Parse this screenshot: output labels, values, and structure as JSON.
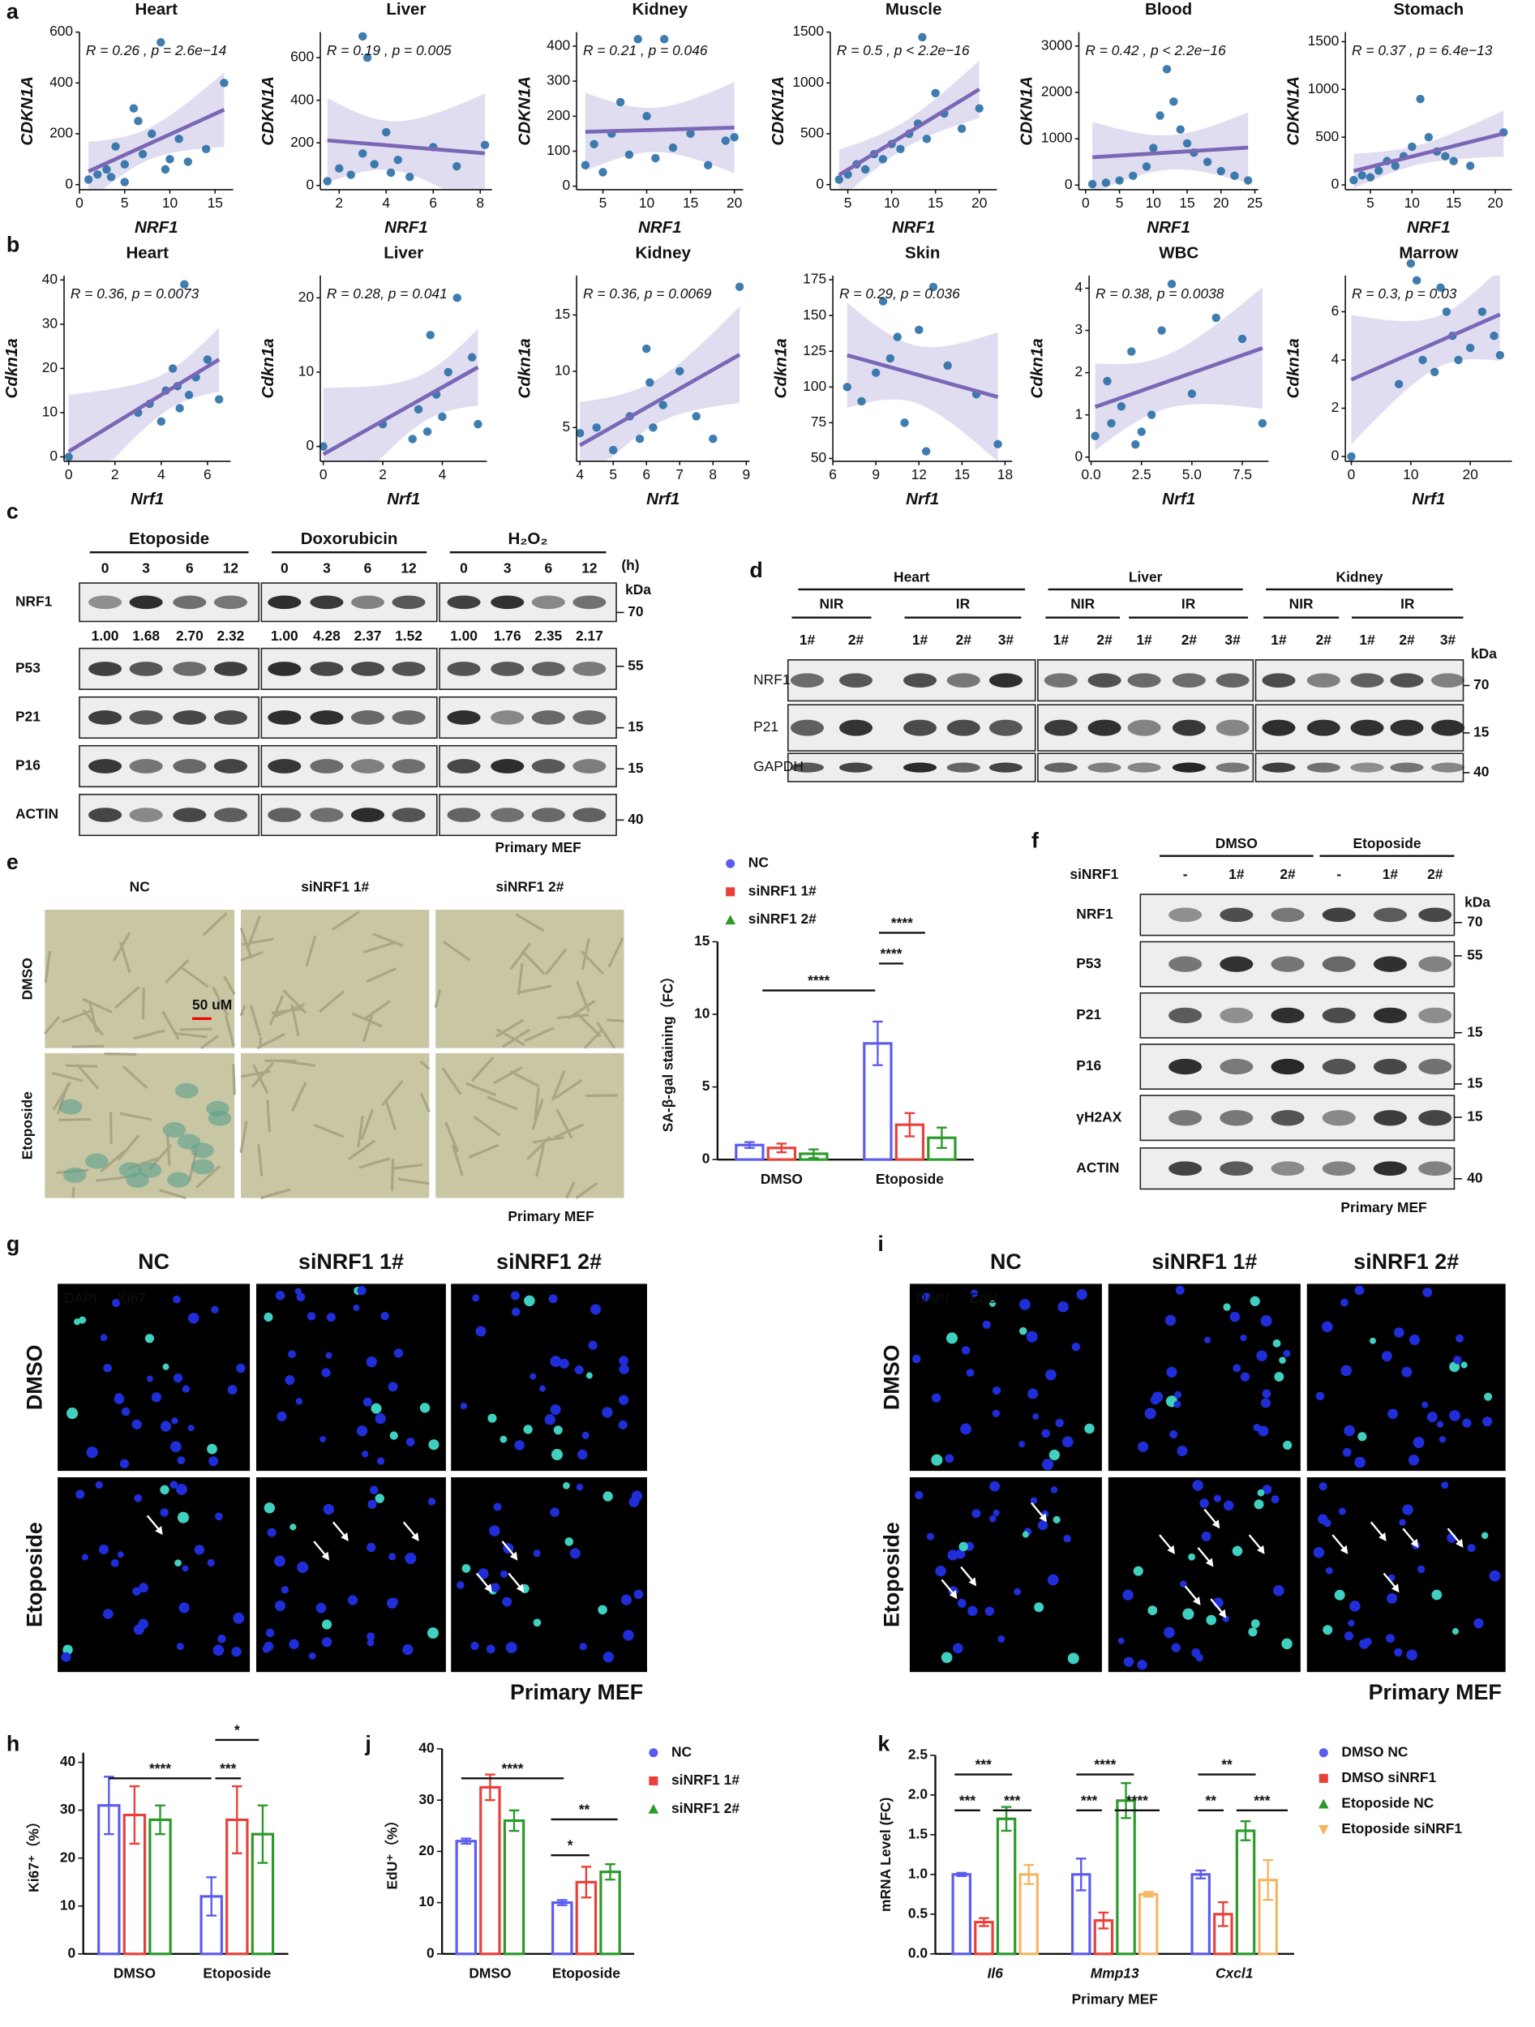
{
  "panel_labels": [
    "a",
    "b",
    "c",
    "d",
    "e",
    "f",
    "g",
    "h",
    "i",
    "j",
    "k"
  ],
  "chart_data": [
    {
      "type": "scatter",
      "title": "Heart",
      "annotation": "R = 0.26 , p = 2.6e−14",
      "x_label": "NRF1",
      "y_label": "CDKN1A",
      "color": "#2a6fa6",
      "fit_color": "#7a67b5",
      "band_color": "#d9d5ee",
      "x": [
        1,
        2,
        3,
        4,
        5,
        6,
        7,
        8,
        9,
        10,
        11,
        12,
        14,
        16,
        3.5,
        6.5,
        9.5,
        5
      ],
      "values": [
        20,
        40,
        60,
        150,
        80,
        300,
        120,
        200,
        560,
        100,
        180,
        90,
        140,
        400,
        30,
        250,
        60,
        10
      ],
      "xlim": [
        0,
        17
      ],
      "ylim": [
        -20,
        600
      ],
      "xticks": [
        0,
        5,
        10,
        15
      ],
      "yticks": [
        0,
        200,
        400,
        600
      ]
    },
    {
      "type": "scatter",
      "title": "Liver",
      "annotation": "R = 0.19 , p = 0.005",
      "x_label": "NRF1",
      "y_label": "CDKN1A",
      "color": "#2a6fa6",
      "fit_color": "#7a67b5",
      "band_color": "#d9d5ee",
      "x": [
        1.5,
        2,
        2.5,
        3,
        3,
        3.5,
        4,
        4.2,
        4.5,
        5,
        6,
        7,
        8.2,
        3.2
      ],
      "values": [
        20,
        80,
        50,
        150,
        700,
        100,
        250,
        60,
        120,
        40,
        180,
        90,
        190,
        600
      ],
      "xlim": [
        1.2,
        8.5
      ],
      "ylim": [
        -20,
        720
      ],
      "xticks": [
        2,
        4,
        6,
        8
      ],
      "yticks": [
        0,
        200,
        400,
        600
      ]
    },
    {
      "type": "scatter",
      "title": "Kidney",
      "annotation": "R = 0.21 , p = 0.046",
      "x_label": "NRF1",
      "y_label": "CDKN1A",
      "color": "#2a6fa6",
      "fit_color": "#7a67b5",
      "band_color": "#d9d5ee",
      "x": [
        3,
        4,
        5,
        6,
        8,
        9,
        10,
        11,
        12,
        13,
        15,
        17,
        19,
        20,
        7
      ],
      "values": [
        60,
        120,
        40,
        150,
        90,
        420,
        200,
        80,
        420,
        110,
        150,
        60,
        130,
        140,
        240
      ],
      "xlim": [
        2,
        21
      ],
      "ylim": [
        -10,
        440
      ],
      "xticks": [
        5,
        10,
        15,
        20
      ],
      "yticks": [
        0,
        100,
        200,
        300,
        400
      ]
    },
    {
      "type": "scatter",
      "title": "Muscle",
      "annotation": "R = 0.5 , p < 2.2e−16",
      "x_label": "NRF1",
      "y_label": "CDKN1A",
      "color": "#2a6fa6",
      "fit_color": "#7a67b5",
      "band_color": "#d9d5ee",
      "x": [
        4,
        5,
        6,
        7,
        8,
        9,
        10,
        11,
        12,
        13,
        14,
        15,
        16,
        18,
        20,
        13.5
      ],
      "values": [
        50,
        100,
        200,
        150,
        300,
        250,
        400,
        350,
        500,
        600,
        450,
        900,
        700,
        550,
        750,
        1450
      ],
      "xlim": [
        3,
        22
      ],
      "ylim": [
        -50,
        1500
      ],
      "xticks": [
        5,
        10,
        15,
        20
      ],
      "yticks": [
        0,
        500,
        1000,
        1500
      ]
    },
    {
      "type": "scatter",
      "title": "Blood",
      "annotation": "R = 0.42 , p < 2.2e−16",
      "x_label": "NRF1",
      "y_label": "CDKN1A",
      "color": "#2a6fa6",
      "fit_color": "#7a67b5",
      "band_color": "#d9d5ee",
      "x": [
        1,
        3,
        5,
        7,
        9,
        10,
        11,
        12,
        13,
        14,
        15,
        16,
        18,
        20,
        22,
        24
      ],
      "values": [
        20,
        50,
        100,
        200,
        400,
        800,
        1500,
        2500,
        1800,
        1200,
        900,
        700,
        500,
        300,
        200,
        100
      ],
      "xlim": [
        -1,
        25.5
      ],
      "ylim": [
        -100,
        3300
      ],
      "xticks": [
        0,
        5,
        10,
        15,
        20,
        25
      ],
      "yticks": [
        0,
        1000,
        2000,
        3000
      ]
    },
    {
      "type": "scatter",
      "title": "Stomach",
      "annotation": "R = 0.37 , p = 6.4e−13",
      "x_label": "NRF1",
      "y_label": "CDKN1A",
      "color": "#2a6fa6",
      "fit_color": "#7a67b5",
      "band_color": "#d9d5ee",
      "x": [
        3,
        4,
        5,
        6,
        7,
        8,
        9,
        10,
        11,
        12,
        13,
        14,
        15,
        17,
        21
      ],
      "values": [
        50,
        100,
        80,
        150,
        250,
        200,
        300,
        400,
        900,
        500,
        350,
        300,
        250,
        200,
        550
      ],
      "xlim": [
        2,
        22
      ],
      "ylim": [
        -50,
        1600
      ],
      "xticks": [
        5,
        10,
        15,
        20
      ],
      "yticks": [
        0,
        500,
        1000,
        1500
      ]
    },
    {
      "type": "scatter",
      "title": "Heart",
      "annotation": "R = 0.36, p = 0.0073",
      "x_label": "Nrf1",
      "y_label": "Cdkn1a",
      "color": "#2a6fa6",
      "fit_color": "#7a67b5",
      "band_color": "#d9d5ee",
      "x": [
        0,
        3,
        3.5,
        4,
        4.2,
        4.5,
        4.8,
        5,
        5.2,
        5.5,
        6,
        6.5,
        4.7
      ],
      "values": [
        0,
        10,
        12,
        8,
        15,
        20,
        11,
        39,
        14,
        18,
        22,
        13,
        16
      ],
      "xlim": [
        -0.2,
        7
      ],
      "ylim": [
        -1,
        41
      ],
      "xticks": [
        0,
        2,
        4,
        6
      ],
      "yticks": [
        0,
        10,
        20,
        30,
        40
      ]
    },
    {
      "type": "scatter",
      "title": "Liver",
      "annotation": "R = 0.28, p = 0.041",
      "x_label": "Nrf1",
      "y_label": "Cdkn1a",
      "color": "#2a6fa6",
      "fit_color": "#7a67b5",
      "band_color": "#d9d5ee",
      "x": [
        0,
        2,
        3,
        3.2,
        3.5,
        3.8,
        4,
        4.2,
        4.5,
        5,
        5.2,
        3.6
      ],
      "values": [
        0,
        3,
        1,
        5,
        2,
        7,
        4,
        10,
        20,
        12,
        3,
        15
      ],
      "xlim": [
        -0.1,
        5.5
      ],
      "ylim": [
        -2,
        23
      ],
      "xticks": [
        0,
        2,
        4
      ],
      "yticks": [
        0,
        10,
        20
      ]
    },
    {
      "type": "scatter",
      "title": "Kidney",
      "annotation": "R = 0.36, p = 0.0069",
      "x_label": "Nrf1",
      "y_label": "Cdkn1a",
      "color": "#2a6fa6",
      "fit_color": "#7a67b5",
      "band_color": "#d9d5ee",
      "x": [
        4,
        4.5,
        5,
        5.5,
        5.8,
        6,
        6.2,
        6.5,
        7,
        7.5,
        8,
        8.8,
        6.1
      ],
      "values": [
        4.5,
        5,
        3,
        6,
        4,
        12,
        5,
        7,
        10,
        6,
        4,
        17.5,
        9
      ],
      "xlim": [
        3.9,
        9.1
      ],
      "ylim": [
        2,
        18.5
      ],
      "xticks": [
        4,
        5,
        6,
        7,
        8,
        9
      ],
      "yticks": [
        5,
        10,
        15
      ]
    },
    {
      "type": "scatter",
      "title": "Skin",
      "annotation": "R = 0.29, p = 0.036",
      "x_label": "Nrf1",
      "y_label": "Cdkn1a",
      "color": "#2a6fa6",
      "fit_color": "#7a67b5",
      "band_color": "#d9d5ee",
      "x": [
        7,
        8,
        9,
        9.5,
        10,
        11,
        12,
        12.5,
        13,
        14,
        16,
        17.5,
        10.5
      ],
      "values": [
        100,
        90,
        110,
        160,
        120,
        75,
        140,
        55,
        170,
        115,
        95,
        60,
        135
      ],
      "xlim": [
        6,
        18.5
      ],
      "ylim": [
        48,
        178
      ],
      "xticks": [
        6,
        9,
        12,
        15,
        18
      ],
      "yticks": [
        50,
        75,
        100,
        125,
        150,
        175
      ]
    },
    {
      "type": "scatter",
      "title": "WBC",
      "annotation": "R = 0.38, p = 0.0038",
      "x_label": "Nrf1",
      "y_label": "Cdkn1a",
      "color": "#2a6fa6",
      "fit_color": "#7a67b5",
      "band_color": "#d9d5ee",
      "x": [
        0.2,
        0.8,
        1,
        1.5,
        2,
        2.5,
        3,
        3.5,
        4,
        5,
        6.2,
        7.5,
        8.5,
        2.2
      ],
      "values": [
        0.5,
        1.8,
        0.8,
        1.2,
        2.5,
        0.6,
        1,
        3,
        4.1,
        1.5,
        3.3,
        2.8,
        0.8,
        0.3
      ],
      "xlim": [
        -0.1,
        8.8
      ],
      "ylim": [
        -0.1,
        4.3
      ],
      "xticks": [
        {
          "value": 0,
          "label": "0.0"
        },
        {
          "value": 2.5,
          "label": "2.5"
        },
        {
          "value": 5,
          "label": "5.0"
        },
        {
          "value": 7.5,
          "label": "7.5"
        }
      ],
      "yticks": [
        0,
        1,
        2,
        3,
        4
      ]
    },
    {
      "type": "scatter",
      "title": "Marrow",
      "annotation": "R = 0.3, p = 0.03",
      "x_label": "Nrf1",
      "y_label": "Cdkn1a",
      "color": "#2a6fa6",
      "fit_color": "#7a67b5",
      "band_color": "#d9d5ee",
      "x": [
        0,
        8,
        10,
        12,
        14,
        15,
        16,
        17,
        18,
        20,
        22,
        24,
        25,
        11
      ],
      "values": [
        0,
        3,
        8,
        4,
        3.5,
        7,
        6,
        5,
        4,
        4.5,
        6,
        5,
        4.2,
        7.3
      ],
      "xlim": [
        -1,
        27
      ],
      "ylim": [
        -0.2,
        7.5
      ],
      "xticks": [
        0,
        10,
        20
      ],
      "yticks": [
        0,
        2,
        4,
        6
      ]
    },
    {
      "type": "bar",
      "y_label": "SA-β-gal staining（FC）",
      "categories": [
        "DMSO",
        "Etoposide"
      ],
      "series": [
        {
          "name": "NC",
          "color": "#5b5bf0",
          "values": [
            1.0,
            8.0
          ],
          "errors": [
            0.2,
            1.5
          ]
        },
        {
          "name": "siNRF1 1#",
          "color": "#e8403a",
          "values": [
            0.8,
            2.4
          ],
          "errors": [
            0.3,
            0.8
          ]
        },
        {
          "name": "siNRF1 2#",
          "color": "#2a9a2a",
          "values": [
            0.4,
            1.5
          ],
          "errors": [
            0.3,
            0.7
          ]
        }
      ],
      "ylim": [
        0,
        15
      ],
      "yticks": [
        0,
        5,
        10,
        15
      ],
      "annotations": [
        "****",
        "****",
        "****"
      ]
    },
    {
      "type": "bar",
      "y_label": "Ki67⁺（%）",
      "categories": [
        "DMSO",
        "Etoposide"
      ],
      "series": [
        {
          "name": "NC",
          "color": "#5b5bf0",
          "values": [
            31,
            12
          ],
          "errors": [
            6,
            4
          ]
        },
        {
          "name": "siNRF1 1#",
          "color": "#e8403a",
          "values": [
            29,
            28
          ],
          "errors": [
            6,
            7
          ]
        },
        {
          "name": "siNRF1 2#",
          "color": "#2a9a2a",
          "values": [
            28,
            25
          ],
          "errors": [
            3,
            6
          ]
        }
      ],
      "ylim": [
        0,
        42
      ],
      "yticks": [
        0,
        10,
        20,
        30,
        40
      ],
      "annotations": [
        "****",
        "***",
        "*"
      ]
    },
    {
      "type": "bar",
      "y_label": "EdU⁺（%）",
      "categories": [
        "DMSO",
        "Etoposide"
      ],
      "series": [
        {
          "name": "NC",
          "color": "#5b5bf0",
          "values": [
            22,
            10
          ],
          "errors": [
            0.5,
            0.5
          ]
        },
        {
          "name": "siNRF1 1#",
          "color": "#e8403a",
          "values": [
            32.5,
            14
          ],
          "errors": [
            2.5,
            3
          ]
        },
        {
          "name": "siNRF1 2#",
          "color": "#2a9a2a",
          "values": [
            26,
            16
          ],
          "errors": [
            2,
            1.5
          ]
        }
      ],
      "ylim": [
        0,
        40
      ],
      "yticks": [
        0,
        10,
        20,
        30,
        40
      ],
      "annotations": [
        "****",
        "**",
        "*"
      ]
    },
    {
      "type": "bar",
      "y_label": "mRNA Level (FC)",
      "x_label": "Primary MEF",
      "categories": [
        "Il6",
        "Mmp13",
        "Cxcl1"
      ],
      "series": [
        {
          "name": "DMSO NC",
          "color": "#5b5bf0",
          "values": [
            1.0,
            1.0,
            1.0
          ],
          "errors": [
            0.02,
            0.2,
            0.05
          ]
        },
        {
          "name": "DMSO siNRF1",
          "color": "#e8403a",
          "values": [
            0.4,
            0.42,
            0.5
          ],
          "errors": [
            0.05,
            0.1,
            0.15
          ]
        },
        {
          "name": "Etoposide NC",
          "color": "#2a9a2a",
          "values": [
            1.7,
            1.93,
            1.55
          ],
          "errors": [
            0.15,
            0.22,
            0.12
          ]
        },
        {
          "name": "Etoposide siNRF1",
          "color": "#f5b560",
          "values": [
            1.0,
            0.75,
            0.93
          ],
          "errors": [
            0.12,
            0.03,
            0.25
          ]
        }
      ],
      "ylim": [
        0,
        2.5
      ],
      "yticks": [
        {
          "value": 0,
          "label": "0.0"
        },
        {
          "value": 0.5,
          "label": "0.5"
        },
        {
          "value": 1,
          "label": "1.0"
        },
        {
          "value": 1.5,
          "label": "1.5"
        },
        {
          "value": 2,
          "label": "2.0"
        },
        {
          "value": 2.5,
          "label": "2.5"
        }
      ],
      "annotations": [
        "***",
        "***",
        "***",
        "****",
        "***",
        "****",
        "**",
        "**",
        "***"
      ]
    }
  ],
  "blot_c": {
    "conditions": [
      "Etoposide",
      "Doxorubicin",
      "H₂O₂"
    ],
    "time_points": [
      [
        "0",
        "3",
        "6",
        "12"
      ],
      [
        "0",
        "3",
        "6",
        "12"
      ],
      [
        "0",
        "3",
        "6",
        "12"
      ]
    ],
    "time_unit": "(h)",
    "rows": [
      "NRF1",
      "P53",
      "P21",
      "P16",
      "ACTIN"
    ],
    "quantification": [
      [
        "1.00",
        "1.68",
        "2.70",
        "2.32"
      ],
      [
        "1.00",
        "4.28",
        "2.37",
        "1.52"
      ],
      [
        "1.00",
        "1.76",
        "2.35",
        "2.17"
      ]
    ],
    "kda_title": "kDa",
    "kda": [
      "70",
      "55",
      "15",
      "15",
      "40"
    ],
    "note": "Primary MEF"
  },
  "blot_d": {
    "tissues": [
      {
        "name": "Heart",
        "groups": [
          {
            "name": "NIR",
            "lanes": [
              "1#",
              "2#"
            ]
          },
          {
            "name": "IR",
            "lanes": [
              "1#",
              "2#",
              "3#"
            ]
          }
        ]
      },
      {
        "name": "Liver",
        "groups": [
          {
            "name": "NIR",
            "lanes": [
              "1#",
              "2#"
            ]
          },
          {
            "name": "IR",
            "lanes": [
              "1#",
              "2#",
              "3#"
            ]
          }
        ]
      },
      {
        "name": "Kidney",
        "groups": [
          {
            "name": "NIR",
            "lanes": [
              "1#",
              "2#"
            ]
          },
          {
            "name": "IR",
            "lanes": [
              "1#",
              "2#",
              "3#"
            ]
          }
        ]
      }
    ],
    "rows": [
      "NRF1",
      "P21",
      "GAPDH"
    ],
    "kda_title": "kDa",
    "kda": [
      "70",
      "15",
      "40"
    ]
  },
  "blot_f": {
    "conditions": [
      "DMSO",
      "Etoposide"
    ],
    "sirna_label": "siNRF1",
    "lanes": [
      "-",
      "1#",
      "2#",
      "-",
      "1#",
      "2#"
    ],
    "rows": [
      "NRF1",
      "P53",
      "P21",
      "P16",
      "γH2AX",
      "ACTIN"
    ],
    "kda_title": "kDa",
    "kda": [
      "70",
      "55",
      "15",
      "15",
      "15",
      "40"
    ],
    "note": "Primary MEF"
  },
  "images_e": {
    "columns": [
      "NC",
      "siNRF1 1#",
      "siNRF1 2#"
    ],
    "rows": [
      "DMSO",
      "Etoposide"
    ],
    "scale_bar": "50 uM",
    "note": "Primary MEF"
  },
  "images_g": {
    "columns": [
      "NC",
      "siNRF1 1#",
      "siNRF1 2#"
    ],
    "rows": [
      "DMSO",
      "Etoposide"
    ],
    "stains": [
      "DAPI",
      "Ki67"
    ],
    "note": "Primary MEF"
  },
  "images_i": {
    "columns": [
      "NC",
      "siNRF1 1#",
      "siNRF1 2#"
    ],
    "rows": [
      "DMSO",
      "Etoposide"
    ],
    "stains": [
      "DAPI",
      "EdU"
    ],
    "note": "Primary MEF"
  }
}
